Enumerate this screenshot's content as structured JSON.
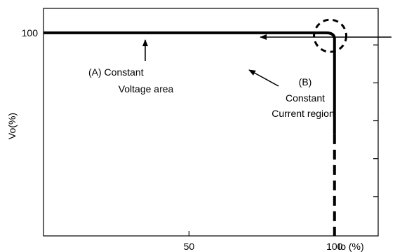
{
  "chart_data": {
    "type": "line",
    "ylabel": "Vo(%)",
    "xlabel": "Io (%)",
    "xlim": [
      0,
      115
    ],
    "ylim": [
      0,
      112
    ],
    "x_ticks": [
      50,
      100
    ],
    "x_tick_labels": [
      "50",
      "100"
    ],
    "y_ticks": [
      100
    ],
    "y_tick_labels": [
      "100"
    ],
    "grid": false,
    "minor_tick_count_right": 5,
    "series": [
      {
        "style": "solid",
        "points": [
          [
            0,
            100
          ],
          [
            97,
            100
          ],
          [
            100,
            97
          ],
          [
            100,
            50
          ]
        ]
      },
      {
        "style": "dashed",
        "points": [
          [
            100,
            50
          ],
          [
            100,
            0
          ]
        ]
      }
    ],
    "highlight_circle": {
      "x": 98.5,
      "y": 98.5
    },
    "annotations": [
      {
        "id": "a",
        "lines": [
          "(A)  Constant",
          "Voltage area"
        ]
      },
      {
        "id": "b",
        "lines": [
          "(B)",
          "Constant",
          "Current region"
        ]
      }
    ]
  }
}
